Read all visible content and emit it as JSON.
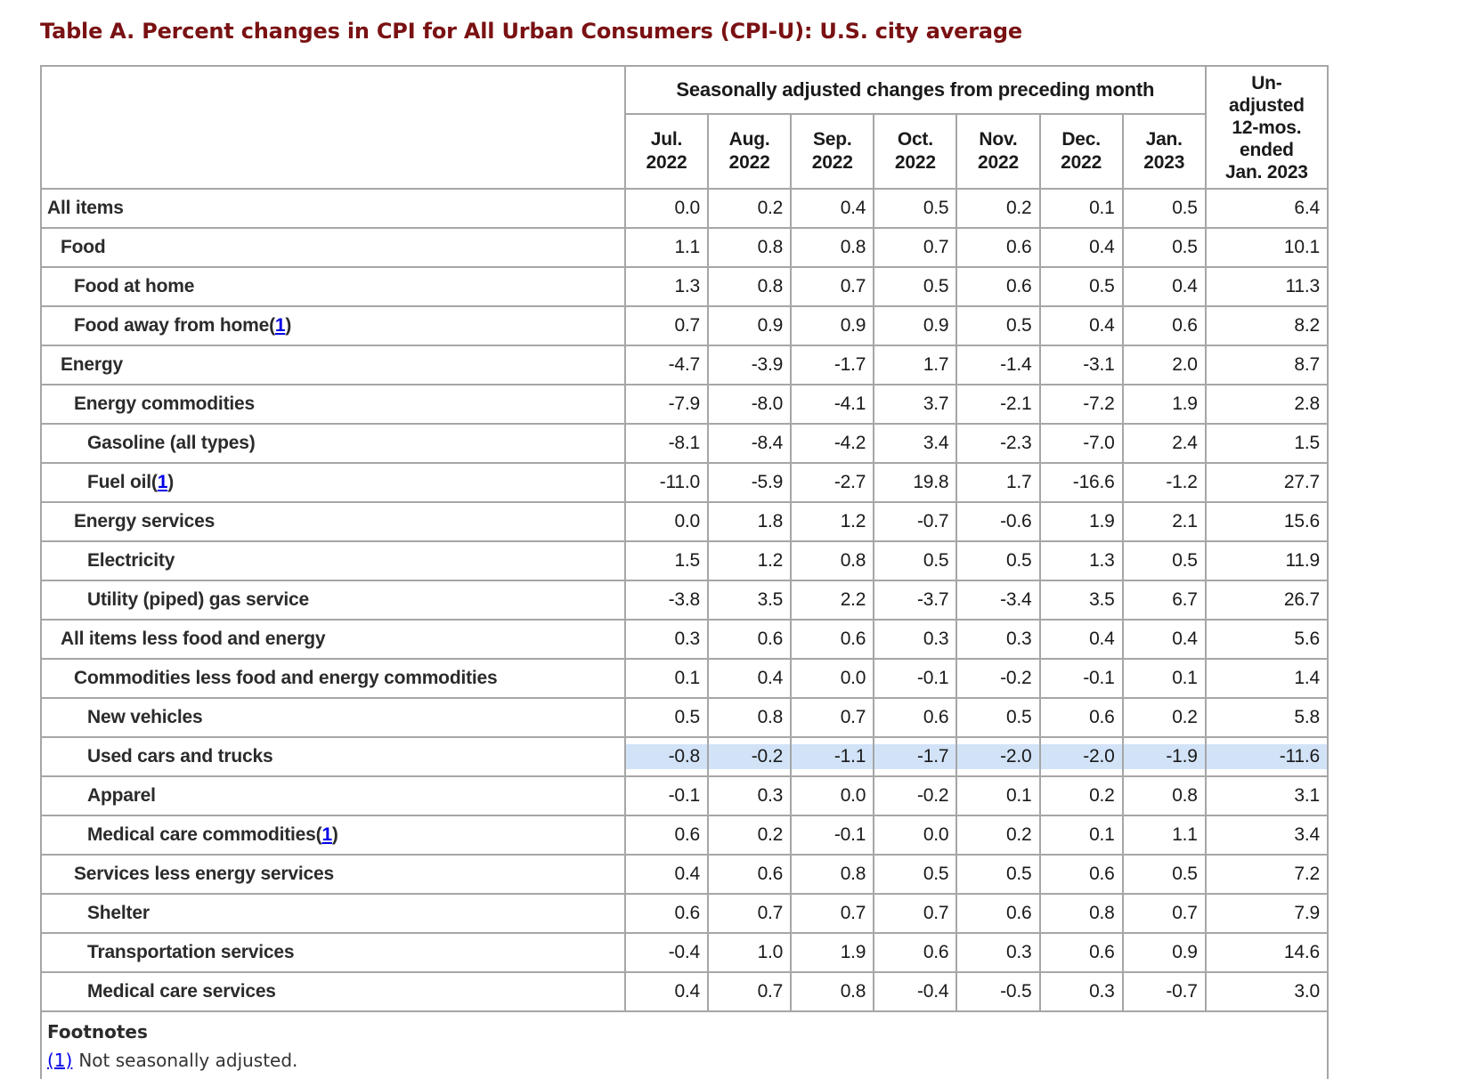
{
  "page": {
    "title": "Table A. Percent changes in CPI for All Urban Consumers (CPI-U): U.S. city average"
  },
  "colors": {
    "title_maroon": "#7a1113",
    "highlight_blue": "#d2e3f8",
    "link_blue": "#0000e8",
    "border_gray": "#a6a6a6"
  },
  "table": {
    "group_header": "Seasonally adjusted changes from preceding month",
    "unadjusted_header": "Un-\nadjusted\n12-mos.\nended\nJan. 2023",
    "months": [
      "Jul.\n2022",
      "Aug.\n2022",
      "Sep.\n2022",
      "Oct.\n2022",
      "Nov.\n2022",
      "Dec.\n2022",
      "Jan.\n2023"
    ],
    "footnote_marker": "1",
    "rows": [
      {
        "label": "All items",
        "indent": 0,
        "footnote": false,
        "highlight": false,
        "values": [
          "0.0",
          "0.2",
          "0.4",
          "0.5",
          "0.2",
          "0.1",
          "0.5",
          "6.4"
        ]
      },
      {
        "label": "Food",
        "indent": 1,
        "footnote": false,
        "highlight": false,
        "values": [
          "1.1",
          "0.8",
          "0.8",
          "0.7",
          "0.6",
          "0.4",
          "0.5",
          "10.1"
        ]
      },
      {
        "label": "Food at home",
        "indent": 2,
        "footnote": false,
        "highlight": false,
        "values": [
          "1.3",
          "0.8",
          "0.7",
          "0.5",
          "0.6",
          "0.5",
          "0.4",
          "11.3"
        ]
      },
      {
        "label": "Food away from home",
        "indent": 2,
        "footnote": true,
        "highlight": false,
        "values": [
          "0.7",
          "0.9",
          "0.9",
          "0.9",
          "0.5",
          "0.4",
          "0.6",
          "8.2"
        ]
      },
      {
        "label": "Energy",
        "indent": 1,
        "footnote": false,
        "highlight": false,
        "values": [
          "-4.7",
          "-3.9",
          "-1.7",
          "1.7",
          "-1.4",
          "-3.1",
          "2.0",
          "8.7"
        ]
      },
      {
        "label": "Energy commodities",
        "indent": 2,
        "footnote": false,
        "highlight": false,
        "values": [
          "-7.9",
          "-8.0",
          "-4.1",
          "3.7",
          "-2.1",
          "-7.2",
          "1.9",
          "2.8"
        ]
      },
      {
        "label": "Gasoline (all types)",
        "indent": 3,
        "footnote": false,
        "highlight": false,
        "values": [
          "-8.1",
          "-8.4",
          "-4.2",
          "3.4",
          "-2.3",
          "-7.0",
          "2.4",
          "1.5"
        ]
      },
      {
        "label": "Fuel oil",
        "indent": 3,
        "footnote": true,
        "highlight": false,
        "values": [
          "-11.0",
          "-5.9",
          "-2.7",
          "19.8",
          "1.7",
          "-16.6",
          "-1.2",
          "27.7"
        ]
      },
      {
        "label": "Energy services",
        "indent": 2,
        "footnote": false,
        "highlight": false,
        "values": [
          "0.0",
          "1.8",
          "1.2",
          "-0.7",
          "-0.6",
          "1.9",
          "2.1",
          "15.6"
        ]
      },
      {
        "label": "Electricity",
        "indent": 3,
        "footnote": false,
        "highlight": false,
        "values": [
          "1.5",
          "1.2",
          "0.8",
          "0.5",
          "0.5",
          "1.3",
          "0.5",
          "11.9"
        ]
      },
      {
        "label": "Utility (piped) gas service",
        "indent": 3,
        "footnote": false,
        "highlight": false,
        "values": [
          "-3.8",
          "3.5",
          "2.2",
          "-3.7",
          "-3.4",
          "3.5",
          "6.7",
          "26.7"
        ]
      },
      {
        "label": "All items less food and energy",
        "indent": 1,
        "footnote": false,
        "highlight": false,
        "values": [
          "0.3",
          "0.6",
          "0.6",
          "0.3",
          "0.3",
          "0.4",
          "0.4",
          "5.6"
        ]
      },
      {
        "label": "Commodities less food and energy commodities",
        "indent": 2,
        "footnote": false,
        "highlight": false,
        "values": [
          "0.1",
          "0.4",
          "0.0",
          "-0.1",
          "-0.2",
          "-0.1",
          "0.1",
          "1.4"
        ]
      },
      {
        "label": "New vehicles",
        "indent": 3,
        "footnote": false,
        "highlight": false,
        "values": [
          "0.5",
          "0.8",
          "0.7",
          "0.6",
          "0.5",
          "0.6",
          "0.2",
          "5.8"
        ]
      },
      {
        "label": "Used cars and trucks",
        "indent": 3,
        "footnote": false,
        "highlight": true,
        "values": [
          "-0.8",
          "-0.2",
          "-1.1",
          "-1.7",
          "-2.0",
          "-2.0",
          "-1.9",
          "-11.6"
        ]
      },
      {
        "label": "Apparel",
        "indent": 3,
        "footnote": false,
        "highlight": false,
        "values": [
          "-0.1",
          "0.3",
          "0.0",
          "-0.2",
          "0.1",
          "0.2",
          "0.8",
          "3.1"
        ]
      },
      {
        "label": "Medical care commodities",
        "indent": 3,
        "footnote": true,
        "highlight": false,
        "values": [
          "0.6",
          "0.2",
          "-0.1",
          "0.0",
          "0.2",
          "0.1",
          "1.1",
          "3.4"
        ]
      },
      {
        "label": "Services less energy services",
        "indent": 2,
        "footnote": false,
        "highlight": false,
        "values": [
          "0.4",
          "0.6",
          "0.8",
          "0.5",
          "0.5",
          "0.6",
          "0.5",
          "7.2"
        ]
      },
      {
        "label": "Shelter",
        "indent": 3,
        "footnote": false,
        "highlight": false,
        "values": [
          "0.6",
          "0.7",
          "0.7",
          "0.7",
          "0.6",
          "0.8",
          "0.7",
          "7.9"
        ]
      },
      {
        "label": "Transportation services",
        "indent": 3,
        "footnote": false,
        "highlight": false,
        "values": [
          "-0.4",
          "1.0",
          "1.9",
          "0.6",
          "0.3",
          "0.6",
          "0.9",
          "14.6"
        ]
      },
      {
        "label": "Medical care services",
        "indent": 3,
        "footnote": false,
        "highlight": false,
        "values": [
          "0.4",
          "0.7",
          "0.8",
          "-0.4",
          "-0.5",
          "0.3",
          "-0.7",
          "3.0"
        ]
      }
    ]
  },
  "footnotes": {
    "heading": "Footnotes",
    "items": [
      {
        "marker": "(1)",
        "text": "Not seasonally adjusted."
      }
    ]
  }
}
